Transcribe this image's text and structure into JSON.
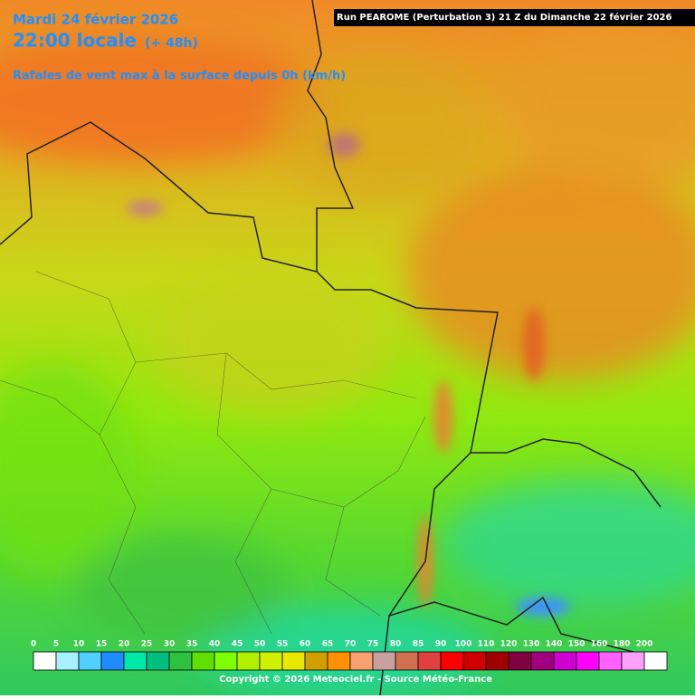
{
  "header": {
    "date": "Mardi 24 février 2026",
    "time": "22:00 locale",
    "offset": "(+ 48h)",
    "subtitle": "Rafales de vent max à la surface depuis 0h (km/h)",
    "run": "Run PEAROME (Perturbation 3) 21 Z du Dimanche 22 février 2026"
  },
  "legend": {
    "labels": [
      0,
      5,
      10,
      15,
      20,
      25,
      30,
      35,
      40,
      45,
      50,
      55,
      60,
      65,
      70,
      75,
      80,
      85,
      90,
      100,
      110,
      120,
      130,
      140,
      150,
      160,
      180,
      200
    ],
    "colors": [
      "#ffffff",
      "#a8f0ff",
      "#50d0ff",
      "#1e8cff",
      "#00e8a8",
      "#00c080",
      "#30c040",
      "#60e000",
      "#80ff00",
      "#b0f000",
      "#d0f000",
      "#e8e800",
      "#d0a000",
      "#ff9000",
      "#f8a070",
      "#c8a0a0",
      "#d07050",
      "#e04040",
      "#ff0000",
      "#d00000",
      "#a00000",
      "#800040",
      "#a00080",
      "#d000d0",
      "#ff00ff",
      "#ff60ff",
      "#ffa0ff",
      "#ffffff"
    ]
  },
  "footer": {
    "copyright": "Copyright © 2026 Meteociel.fr - Source Météo-France"
  }
}
